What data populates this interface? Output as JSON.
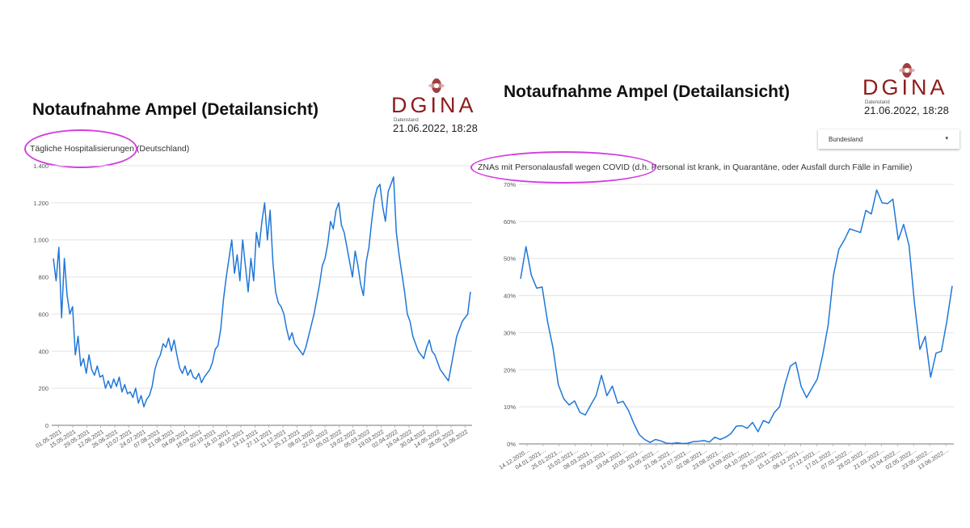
{
  "left": {
    "title": "Notaufnahme Ampel (Detailansicht)",
    "logo": "DGINA",
    "datenstand_label": "Datenstand",
    "datenstand": "21.06.2022, 18:28",
    "subtitle": "Tägliche Hospitalisierungen (Deutschland)"
  },
  "right": {
    "title": "Notaufnahme Ampel (Detailansicht)",
    "logo": "DGINA",
    "datenstand_label": "Datenstand",
    "datenstand": "21.06.2022, 18:28",
    "subtitle": "ZNAs mit Personalausfall wegen COVID (d.h. Personal ist krank, in Quarantäne, oder Ausfall durch Fälle in Familie)",
    "dropdown": {
      "label": "Bundesland",
      "caret": "▾"
    }
  },
  "colors": {
    "line": "#1f77d8",
    "highlight": "#d23ee0",
    "brand": "#8f1b1b"
  },
  "chart_data": [
    {
      "type": "line",
      "title": "Tägliche Hospitalisierungen (Deutschland)",
      "ylim": [
        0,
        1400
      ],
      "yticks": [
        0,
        200,
        400,
        600,
        800,
        1000,
        1200,
        1400
      ],
      "ytick_labels": [
        "0",
        "200",
        "400",
        "600",
        "800",
        "1.000",
        "1.200",
        "1.400"
      ],
      "xtick_labels": [
        "01.05.2021",
        "15.05.2021",
        "29.05.2021",
        "12.06.2021",
        "26.06.2021",
        "10.07.2021",
        "24.07.2021",
        "07.08.2021",
        "21.08.2021",
        "04.09.2021",
        "18.09.2021",
        "02.10.2021",
        "16.10.2021",
        "30.10.2021",
        "13.11.2021",
        "27.11.2021",
        "11.12.2021",
        "25.12.2021",
        "08.01.2022",
        "22.01.2022",
        "05.02.2022",
        "19.02.2022",
        "05.03.2022",
        "19.03.2022",
        "02.04.2022",
        "16.04.2022",
        "30.04.2022",
        "14.05.2022",
        "28.05.2022",
        "11.06.2022"
      ],
      "grid": true,
      "series": [
        {
          "values": [
            900,
            780,
            960,
            580,
            900,
            700,
            600,
            640,
            380,
            480,
            320,
            360,
            280,
            380,
            300,
            270,
            320,
            260,
            270,
            200,
            240,
            200,
            250,
            210,
            260,
            180,
            220,
            170,
            180,
            150,
            200,
            120,
            160,
            100,
            140,
            160,
            210,
            300,
            350,
            380,
            440,
            420,
            470,
            400,
            460,
            380,
            310,
            280,
            320,
            270,
            300,
            260,
            250,
            280,
            230,
            260,
            280,
            300,
            340,
            410,
            430,
            520,
            680,
            800,
            900,
            1000,
            820,
            920,
            780,
            1000,
            860,
            720,
            900,
            780,
            1040,
            960,
            1100,
            1200,
            1000,
            1160,
            880,
            720,
            660,
            640,
            600,
            520,
            460,
            500,
            440,
            420,
            400,
            380,
            420,
            480,
            540,
            600,
            680,
            760,
            860,
            900,
            980,
            1100,
            1060,
            1160,
            1200,
            1080,
            1040,
            960,
            880,
            800,
            940,
            860,
            760,
            700,
            880,
            960,
            1100,
            1220,
            1280,
            1300,
            1180,
            1100,
            1260,
            1300,
            1340,
            1040,
            920,
            820,
            720,
            600,
            560,
            480,
            440,
            400,
            380,
            360,
            420,
            460,
            400,
            380,
            340,
            300,
            280,
            260,
            240,
            320,
            400,
            480,
            520,
            560,
            580,
            600,
            720
          ]
        }
      ]
    },
    {
      "type": "line",
      "title": "ZNAs mit Personalausfall wegen COVID (d.h. Personal ist krank, in Quarantäne, oder Ausfall durch Fälle in Familie)",
      "ylim": [
        0,
        70
      ],
      "yticks": [
        0,
        10,
        20,
        30,
        40,
        50,
        60,
        70
      ],
      "ytick_labels": [
        "0%",
        "10%",
        "20%",
        "30%",
        "40%",
        "50%",
        "60%",
        "70%"
      ],
      "xtick_labels": [
        "14.12.2020…",
        "04.01.2021…",
        "25.01.2021…",
        "15.02.2021…",
        "08.03.2021…",
        "29.03.2021…",
        "19.04.2021…",
        "10.05.2021…",
        "31.05.2021…",
        "21.06.2021…",
        "12.07.2021…",
        "02.08.2021…",
        "23.08.2021…",
        "13.09.2021…",
        "04.10.2021…",
        "25.10.2021…",
        "15.11.2021…",
        "06.12.2021…",
        "27.12.2021…",
        "17.01.2022…",
        "07.02.2022…",
        "28.02.2022…",
        "21.03.2022…",
        "11.04.2022…",
        "02.05.2022…",
        "23.05.2022…",
        "13.06.2022…"
      ],
      "grid": true,
      "series": [
        {
          "values": [
            44.5,
            53.2,
            45.5,
            42.0,
            42.3,
            33.0,
            26.0,
            16.0,
            12.2,
            10.5,
            11.6,
            8.5,
            7.8,
            10.5,
            13.0,
            18.5,
            13.0,
            15.6,
            11.0,
            11.5,
            9.0,
            5.5,
            2.5,
            1.2,
            0.4,
            1.2,
            0.8,
            0.2,
            0.1,
            0.3,
            0.1,
            0.2,
            0.6,
            0.7,
            0.9,
            0.5,
            1.8,
            1.2,
            1.8,
            2.8,
            4.8,
            4.9,
            4.2,
            5.8,
            3.3,
            6.3,
            5.6,
            8.4,
            10.0,
            16.0,
            21.0,
            22.0,
            15.5,
            12.5,
            15.0,
            17.5,
            24.0,
            32.0,
            45.5,
            52.5,
            55.0,
            58.0,
            57.5,
            57.0,
            63.0,
            62.0,
            68.5,
            65.0,
            64.8,
            66.0,
            55.0,
            59.2,
            53.5,
            38.0,
            25.5,
            29.0,
            18.0,
            24.5,
            25.0,
            33.0,
            42.6
          ]
        }
      ]
    }
  ]
}
